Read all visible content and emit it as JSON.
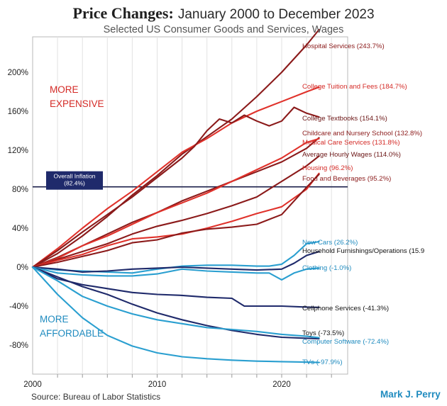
{
  "title_bold": "Price Changes:",
  "title_rest": "January 2000 to December 2023",
  "subtitle": "Selected US Consumer Goods and Services, Wages",
  "source": "Source: Bureau of Labor Statistics",
  "author": "Mark J. Perry",
  "chart_data": {
    "type": "line",
    "title": "Price Changes: January 2000 to December 2023",
    "subtitle": "Selected US Consumer Goods and Services, Wages",
    "xlabel": "",
    "ylabel": "",
    "xlim": [
      2000,
      2025
    ],
    "ylim": [
      -100,
      240
    ],
    "x_ticks": [
      2000,
      2010,
      2020
    ],
    "y_ticks": [
      200,
      160,
      120,
      80,
      40,
      0,
      -40,
      -80
    ],
    "y_tick_labels": [
      "200%",
      "160%",
      "120%",
      "80%",
      "40%",
      "0%",
      "-40%",
      "-80%"
    ],
    "grid": "vertical",
    "legend": "end-of-line labels",
    "annotations": {
      "more_expensive": [
        "MORE",
        "EXPENSIVE"
      ],
      "more_affordable": [
        "MORE",
        "AFFORDABLE"
      ],
      "inflation_label": [
        "Overall Inflation",
        "(82.4%)"
      ],
      "inflation_value": 82.4
    },
    "colors": {
      "dark_red": "#8b1a1a",
      "red": "#e0322b",
      "navy": "#1f2a6b",
      "light_blue": "#2a9fd0",
      "expensive_text": "#d42a26",
      "affordable_text": "#1f8bbf",
      "inflation_box": "#1f2a6b"
    },
    "series": [
      {
        "name": "Hospital Services (243.7%)",
        "color": "dark_red",
        "x": [
          2000,
          2002,
          2004,
          2006,
          2008,
          2010,
          2012,
          2014,
          2016,
          2018,
          2020,
          2022,
          2023
        ],
        "y": [
          0,
          14,
          32,
          52,
          74,
          94,
          116,
          134,
          152,
          175,
          200,
          228,
          243.7
        ]
      },
      {
        "name": "College Tuition and Fees (184.7%)",
        "color": "red",
        "x": [
          2000,
          2002,
          2004,
          2006,
          2008,
          2010,
          2012,
          2014,
          2016,
          2018,
          2020,
          2022,
          2023
        ],
        "y": [
          0,
          19,
          40,
          60,
          78,
          98,
          118,
          132,
          148,
          160,
          170,
          180,
          184.7
        ]
      },
      {
        "name": "College Textbooks (154.1%)",
        "color": "dark_red",
        "x": [
          2000,
          2002,
          2004,
          2006,
          2008,
          2010,
          2012,
          2013,
          2014,
          2015,
          2016,
          2017,
          2018,
          2019,
          2020,
          2021,
          2022,
          2023
        ],
        "y": [
          0,
          17,
          36,
          54,
          72,
          92,
          112,
          124,
          140,
          152,
          148,
          156,
          150,
          145,
          150,
          164,
          158,
          154.1
        ]
      },
      {
        "name": "Childcare and Nursery School (132.8%)",
        "color": "dark_red",
        "x": [
          2000,
          2002,
          2004,
          2006,
          2008,
          2010,
          2012,
          2014,
          2016,
          2018,
          2020,
          2022,
          2023
        ],
        "y": [
          0,
          10,
          22,
          34,
          46,
          56,
          68,
          78,
          88,
          98,
          108,
          122,
          132.8
        ]
      },
      {
        "name": "Medical Care Services (131.8%)",
        "color": "red",
        "x": [
          2000,
          2002,
          2004,
          2006,
          2008,
          2010,
          2012,
          2014,
          2016,
          2018,
          2020,
          2022,
          2023
        ],
        "y": [
          0,
          9,
          22,
          32,
          44,
          56,
          66,
          76,
          88,
          100,
          112,
          128,
          131.8
        ]
      },
      {
        "name": "Average Hourly Wages (114.0%)",
        "color": "dark_red",
        "x": [
          2000,
          2002,
          2004,
          2006,
          2008,
          2010,
          2012,
          2014,
          2016,
          2018,
          2020,
          2022,
          2023
        ],
        "y": [
          0,
          8,
          16,
          24,
          34,
          42,
          48,
          55,
          63,
          72,
          88,
          104,
          114
        ]
      },
      {
        "name": "Housing (96.2%)",
        "color": "red",
        "x": [
          2000,
          2002,
          2004,
          2006,
          2008,
          2010,
          2012,
          2014,
          2016,
          2018,
          2020,
          2022,
          2023
        ],
        "y": [
          0,
          7,
          13,
          22,
          29,
          31,
          34,
          40,
          47,
          55,
          62,
          80,
          96.2
        ]
      },
      {
        "name": "Food and Beverages (95.2%)",
        "color": "dark_red",
        "x": [
          2000,
          2002,
          2004,
          2006,
          2008,
          2010,
          2012,
          2014,
          2016,
          2018,
          2020,
          2022,
          2023
        ],
        "y": [
          0,
          5,
          11,
          17,
          25,
          28,
          35,
          39,
          41,
          44,
          54,
          82,
          95.2
        ]
      },
      {
        "name": "New Cars (26.2%)",
        "color": "light_blue",
        "x": [
          2000,
          2002,
          2004,
          2006,
          2008,
          2010,
          2012,
          2014,
          2016,
          2018,
          2019,
          2020,
          2021,
          2022,
          2023
        ],
        "y": [
          0,
          -3,
          -4,
          -5,
          -6,
          -2,
          1,
          2,
          2,
          1,
          1,
          3,
          12,
          24,
          26.2
        ]
      },
      {
        "name": "Household Furnishings/Operations (15.9",
        "color": "navy",
        "x": [
          2000,
          2002,
          2004,
          2006,
          2008,
          2010,
          2012,
          2014,
          2016,
          2018,
          2020,
          2021,
          2022,
          2023
        ],
        "y": [
          0,
          -2,
          -5,
          -4,
          -2,
          -1,
          0,
          -1,
          -2,
          -3,
          -2,
          4,
          12,
          15.9
        ]
      },
      {
        "name": "Clothing (-1.0%)",
        "color": "light_blue",
        "x": [
          2000,
          2002,
          2004,
          2006,
          2008,
          2010,
          2012,
          2014,
          2016,
          2018,
          2019,
          2020,
          2021,
          2022,
          2023
        ],
        "y": [
          0,
          -6,
          -8,
          -9,
          -9,
          -7,
          -2,
          -4,
          -5,
          -6,
          -6,
          -13,
          -6,
          -2,
          -1
        ]
      },
      {
        "name": "Cellphone Services (-41.3%)",
        "color": "navy",
        "x": [
          2000,
          2002,
          2004,
          2006,
          2008,
          2010,
          2012,
          2014,
          2016,
          2017,
          2018,
          2020,
          2022,
          2023
        ],
        "y": [
          0,
          -12,
          -18,
          -22,
          -26,
          -28,
          -29,
          -31,
          -32,
          -40,
          -40,
          -40,
          -41,
          -41.3
        ]
      },
      {
        "name": "Toys (-73.5%)",
        "color": "navy",
        "x": [
          2000,
          2002,
          2004,
          2006,
          2008,
          2010,
          2012,
          2014,
          2016,
          2018,
          2020,
          2022,
          2023
        ],
        "y": [
          0,
          -10,
          -20,
          -28,
          -38,
          -47,
          -54,
          -60,
          -65,
          -69,
          -72,
          -73,
          -73.5
        ]
      },
      {
        "name": "Computer Software (-72.4%)",
        "color": "light_blue",
        "x": [
          2000,
          2002,
          2004,
          2006,
          2008,
          2010,
          2012,
          2014,
          2016,
          2018,
          2020,
          2022,
          2023
        ],
        "y": [
          0,
          -14,
          -30,
          -40,
          -48,
          -54,
          -58,
          -62,
          -64,
          -66,
          -69,
          -71,
          -72.4
        ]
      },
      {
        "name": "TVs (-97.9%)",
        "color": "light_blue",
        "x": [
          2000,
          2002,
          2004,
          2006,
          2008,
          2010,
          2012,
          2014,
          2016,
          2018,
          2020,
          2022,
          2023
        ],
        "y": [
          0,
          -28,
          -52,
          -70,
          -81,
          -88,
          -92,
          -94,
          -95.5,
          -96.5,
          -97,
          -97.5,
          -97.9
        ]
      }
    ]
  }
}
